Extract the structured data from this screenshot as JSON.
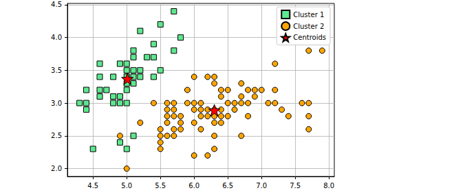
{
  "chart_data": {
    "type": "scatter",
    "xlim": [
      4.12,
      8.08
    ],
    "ylim": [
      1.88,
      4.52
    ],
    "xticks": [
      4.5,
      {
        "value": 5,
        "label": "5.0"
      },
      5.5,
      {
        "value": 6,
        "label": "6.0"
      },
      6.5,
      {
        "value": 7,
        "label": "7.0"
      },
      7.5,
      {
        "value": 8,
        "label": "8.0"
      }
    ],
    "yticks": [
      {
        "value": 2,
        "label": "2.0"
      },
      2.5,
      {
        "value": 3,
        "label": "3.0"
      },
      3.5,
      {
        "value": 4,
        "label": "4.0"
      },
      4.5
    ],
    "grid": true,
    "legend": "upper right",
    "series": [
      {
        "name": "Cluster 1",
        "color": "#5ee88f",
        "marker": "square",
        "x": [
          4.3,
          4.4,
          4.4,
          4.4,
          4.5,
          4.6,
          4.6,
          4.6,
          4.6,
          4.7,
          4.8,
          4.8,
          4.8,
          4.9,
          4.9,
          4.9,
          4.9,
          5.0,
          5.0,
          5.0,
          5.0,
          5.0,
          5.0,
          5.0,
          5.1,
          5.1,
          5.1,
          5.1,
          5.1,
          5.1,
          5.2,
          5.2,
          5.2,
          5.3,
          5.4,
          5.4,
          5.4,
          5.5,
          5.5,
          5.7,
          5.7,
          5.8
        ],
        "values": [
          3.0,
          3.0,
          2.9,
          3.2,
          2.3,
          3.1,
          3.2,
          3.4,
          3.6,
          3.2,
          3.0,
          3.1,
          3.4,
          3.0,
          3.1,
          3.6,
          2.4,
          3.0,
          3.2,
          3.3,
          3.4,
          3.5,
          3.6,
          2.3,
          3.3,
          3.4,
          3.5,
          3.7,
          3.8,
          2.5,
          3.4,
          3.5,
          4.1,
          3.7,
          3.4,
          3.7,
          3.9,
          3.5,
          4.2,
          3.8,
          4.4,
          4.0
        ]
      },
      {
        "name": "Cluster 2",
        "color": "#ffa500",
        "marker": "circle",
        "x": [
          4.9,
          5.0,
          5.2,
          5.4,
          5.5,
          5.5,
          5.5,
          5.5,
          5.6,
          5.6,
          5.6,
          5.6,
          5.6,
          5.7,
          5.7,
          5.7,
          5.7,
          5.7,
          5.8,
          5.8,
          5.8,
          5.9,
          5.9,
          6.0,
          6.0,
          6.0,
          6.0,
          6.0,
          6.1,
          6.1,
          6.1,
          6.1,
          6.2,
          6.2,
          6.2,
          6.2,
          6.3,
          6.3,
          6.3,
          6.3,
          6.3,
          6.3,
          6.3,
          6.4,
          6.4,
          6.4,
          6.4,
          6.4,
          6.5,
          6.5,
          6.5,
          6.6,
          6.6,
          6.7,
          6.7,
          6.7,
          6.7,
          6.8,
          6.8,
          6.8,
          6.9,
          6.9,
          7.0,
          7.1,
          7.2,
          7.2,
          7.2,
          7.3,
          7.4,
          7.6,
          7.7,
          7.7,
          7.7,
          7.7,
          7.9
        ],
        "values": [
          2.5,
          2.0,
          2.7,
          3.0,
          2.3,
          2.4,
          2.5,
          2.6,
          2.5,
          2.7,
          2.8,
          2.9,
          3.0,
          2.5,
          2.6,
          2.8,
          2.9,
          3.0,
          2.6,
          2.7,
          2.8,
          3.0,
          3.2,
          2.2,
          2.7,
          2.9,
          3.0,
          3.4,
          2.6,
          2.8,
          2.9,
          3.0,
          2.2,
          2.8,
          2.9,
          3.4,
          2.3,
          2.5,
          2.7,
          2.8,
          2.9,
          3.3,
          3.4,
          2.7,
          2.8,
          2.9,
          3.1,
          3.2,
          2.8,
          3.0,
          3.2,
          2.9,
          3.0,
          2.5,
          3.0,
          3.1,
          3.3,
          2.8,
          3.0,
          3.2,
          3.1,
          3.2,
          3.2,
          3.0,
          3.0,
          3.2,
          3.6,
          2.9,
          2.8,
          3.0,
          2.6,
          2.8,
          3.0,
          3.8,
          3.8
        ]
      },
      {
        "name": "Centroids",
        "color": "#ff0000",
        "marker": "star",
        "x": [
          5.01,
          6.3
        ],
        "values": [
          3.37,
          2.89
        ]
      }
    ]
  }
}
